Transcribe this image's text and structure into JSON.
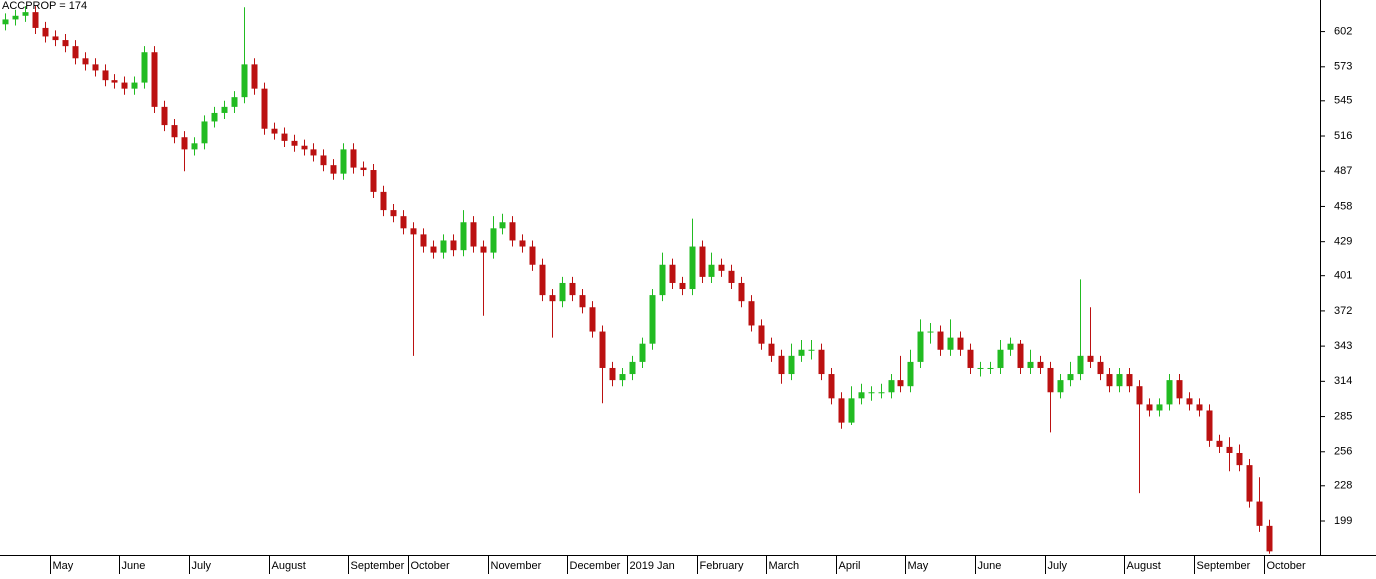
{
  "chart_data": {
    "type": "candlestick",
    "title": "ACCPROP = 174",
    "title_color": "#cc0000",
    "up_color": "#22bb22",
    "down_color": "#bb1111",
    "grid": false,
    "ylim": [
      171,
      628
    ],
    "yticks": [
      199,
      228,
      256,
      285,
      314,
      343,
      372,
      401,
      429,
      458,
      487,
      516,
      545,
      573,
      602
    ],
    "categories": [
      null,
      null,
      null,
      null,
      null,
      "May",
      null,
      null,
      null,
      null,
      null,
      null,
      "June",
      null,
      null,
      null,
      null,
      null,
      null,
      "July",
      null,
      null,
      null,
      null,
      null,
      null,
      null,
      "August",
      null,
      null,
      null,
      null,
      null,
      null,
      null,
      "September",
      null,
      null,
      null,
      null,
      null,
      "October",
      null,
      null,
      null,
      null,
      null,
      null,
      null,
      "November",
      null,
      null,
      null,
      null,
      null,
      null,
      null,
      "December",
      null,
      null,
      null,
      null,
      null,
      "2019 Jan",
      null,
      null,
      null,
      null,
      null,
      null,
      "February",
      null,
      null,
      null,
      null,
      null,
      null,
      "March",
      null,
      null,
      null,
      null,
      null,
      null,
      "April",
      null,
      null,
      null,
      null,
      null,
      null,
      "May",
      null,
      null,
      null,
      null,
      null,
      null,
      "June",
      null,
      null,
      null,
      null,
      null,
      null,
      "July",
      null,
      null,
      null,
      null,
      null,
      null,
      null,
      "August",
      null,
      null,
      null,
      null,
      null,
      null,
      "September",
      null,
      null,
      null,
      null,
      null,
      null,
      "October"
    ],
    "open": [
      608,
      612,
      615,
      618,
      605,
      598,
      595,
      590,
      580,
      575,
      570,
      562,
      560,
      555,
      560,
      585,
      540,
      525,
      515,
      505,
      510,
      528,
      535,
      540,
      548,
      575,
      555,
      522,
      518,
      512,
      508,
      505,
      500,
      492,
      485,
      505,
      490,
      488,
      470,
      455,
      450,
      440,
      435,
      425,
      420,
      430,
      422,
      445,
      425,
      420,
      440,
      445,
      430,
      425,
      410,
      385,
      380,
      395,
      385,
      375,
      355,
      325,
      315,
      320,
      330,
      345,
      385,
      410,
      395,
      390,
      425,
      400,
      410,
      405,
      395,
      380,
      360,
      345,
      335,
      320,
      335,
      340,
      340,
      320,
      300,
      280,
      300,
      305,
      305,
      305,
      315,
      310,
      330,
      355,
      355,
      340,
      350,
      340,
      325,
      325,
      325,
      340,
      345,
      325,
      330,
      325,
      305,
      315,
      320,
      335,
      330,
      320,
      310,
      320,
      310,
      295,
      290,
      295,
      315,
      300,
      295,
      290,
      265,
      260,
      255,
      245,
      215,
      195
    ],
    "high": [
      617,
      620,
      623,
      623,
      610,
      603,
      600,
      595,
      585,
      580,
      575,
      567,
      565,
      565,
      590,
      590,
      545,
      530,
      520,
      515,
      533,
      540,
      545,
      553,
      622,
      580,
      560,
      527,
      523,
      517,
      513,
      510,
      505,
      497,
      510,
      510,
      495,
      493,
      475,
      460,
      455,
      445,
      440,
      430,
      435,
      435,
      455,
      450,
      430,
      450,
      452,
      450,
      435,
      430,
      415,
      390,
      400,
      400,
      390,
      380,
      360,
      330,
      325,
      335,
      350,
      390,
      420,
      415,
      400,
      448,
      430,
      420,
      415,
      410,
      400,
      385,
      365,
      350,
      340,
      345,
      348,
      348,
      345,
      325,
      305,
      310,
      312,
      310,
      312,
      320,
      335,
      340,
      365,
      362,
      360,
      365,
      355,
      345,
      330,
      330,
      348,
      350,
      348,
      340,
      335,
      330,
      320,
      330,
      398,
      375,
      335,
      325,
      325,
      325,
      315,
      300,
      300,
      320,
      320,
      305,
      300,
      295,
      270,
      268,
      262,
      250,
      235,
      200
    ],
    "low": [
      603,
      607,
      610,
      600,
      593,
      590,
      585,
      575,
      570,
      565,
      557,
      555,
      550,
      550,
      555,
      535,
      520,
      510,
      487,
      500,
      505,
      523,
      530,
      535,
      543,
      550,
      517,
      513,
      507,
      503,
      500,
      495,
      487,
      480,
      480,
      485,
      483,
      465,
      450,
      445,
      435,
      335,
      420,
      415,
      415,
      417,
      417,
      420,
      368,
      415,
      435,
      425,
      420,
      405,
      380,
      350,
      375,
      380,
      370,
      350,
      296,
      310,
      310,
      315,
      325,
      340,
      380,
      390,
      385,
      385,
      395,
      395,
      400,
      390,
      375,
      355,
      340,
      330,
      312,
      315,
      330,
      332,
      315,
      295,
      275,
      278,
      295,
      298,
      300,
      300,
      305,
      305,
      325,
      345,
      335,
      335,
      335,
      320,
      318,
      320,
      320,
      335,
      320,
      320,
      320,
      272,
      300,
      310,
      315,
      325,
      315,
      305,
      305,
      305,
      222,
      285,
      285,
      290,
      295,
      290,
      285,
      260,
      255,
      240,
      240,
      210,
      190,
      172
    ],
    "close": [
      612,
      615,
      618,
      605,
      598,
      595,
      590,
      580,
      575,
      570,
      562,
      560,
      555,
      560,
      585,
      540,
      525,
      515,
      505,
      510,
      528,
      535,
      540,
      548,
      575,
      555,
      522,
      518,
      512,
      508,
      505,
      500,
      492,
      485,
      505,
      490,
      488,
      470,
      455,
      450,
      440,
      435,
      425,
      420,
      430,
      422,
      445,
      425,
      420,
      440,
      445,
      430,
      425,
      410,
      385,
      380,
      395,
      385,
      375,
      355,
      325,
      315,
      320,
      330,
      345,
      385,
      410,
      395,
      390,
      425,
      400,
      410,
      405,
      395,
      380,
      360,
      345,
      335,
      320,
      335,
      340,
      340,
      320,
      300,
      280,
      300,
      305,
      305,
      305,
      315,
      310,
      330,
      355,
      355,
      340,
      350,
      340,
      325,
      325,
      325,
      340,
      345,
      325,
      330,
      325,
      305,
      315,
      320,
      335,
      330,
      320,
      310,
      320,
      310,
      295,
      290,
      295,
      315,
      300,
      295,
      290,
      265,
      260,
      255,
      245,
      215,
      195,
      174
    ]
  }
}
